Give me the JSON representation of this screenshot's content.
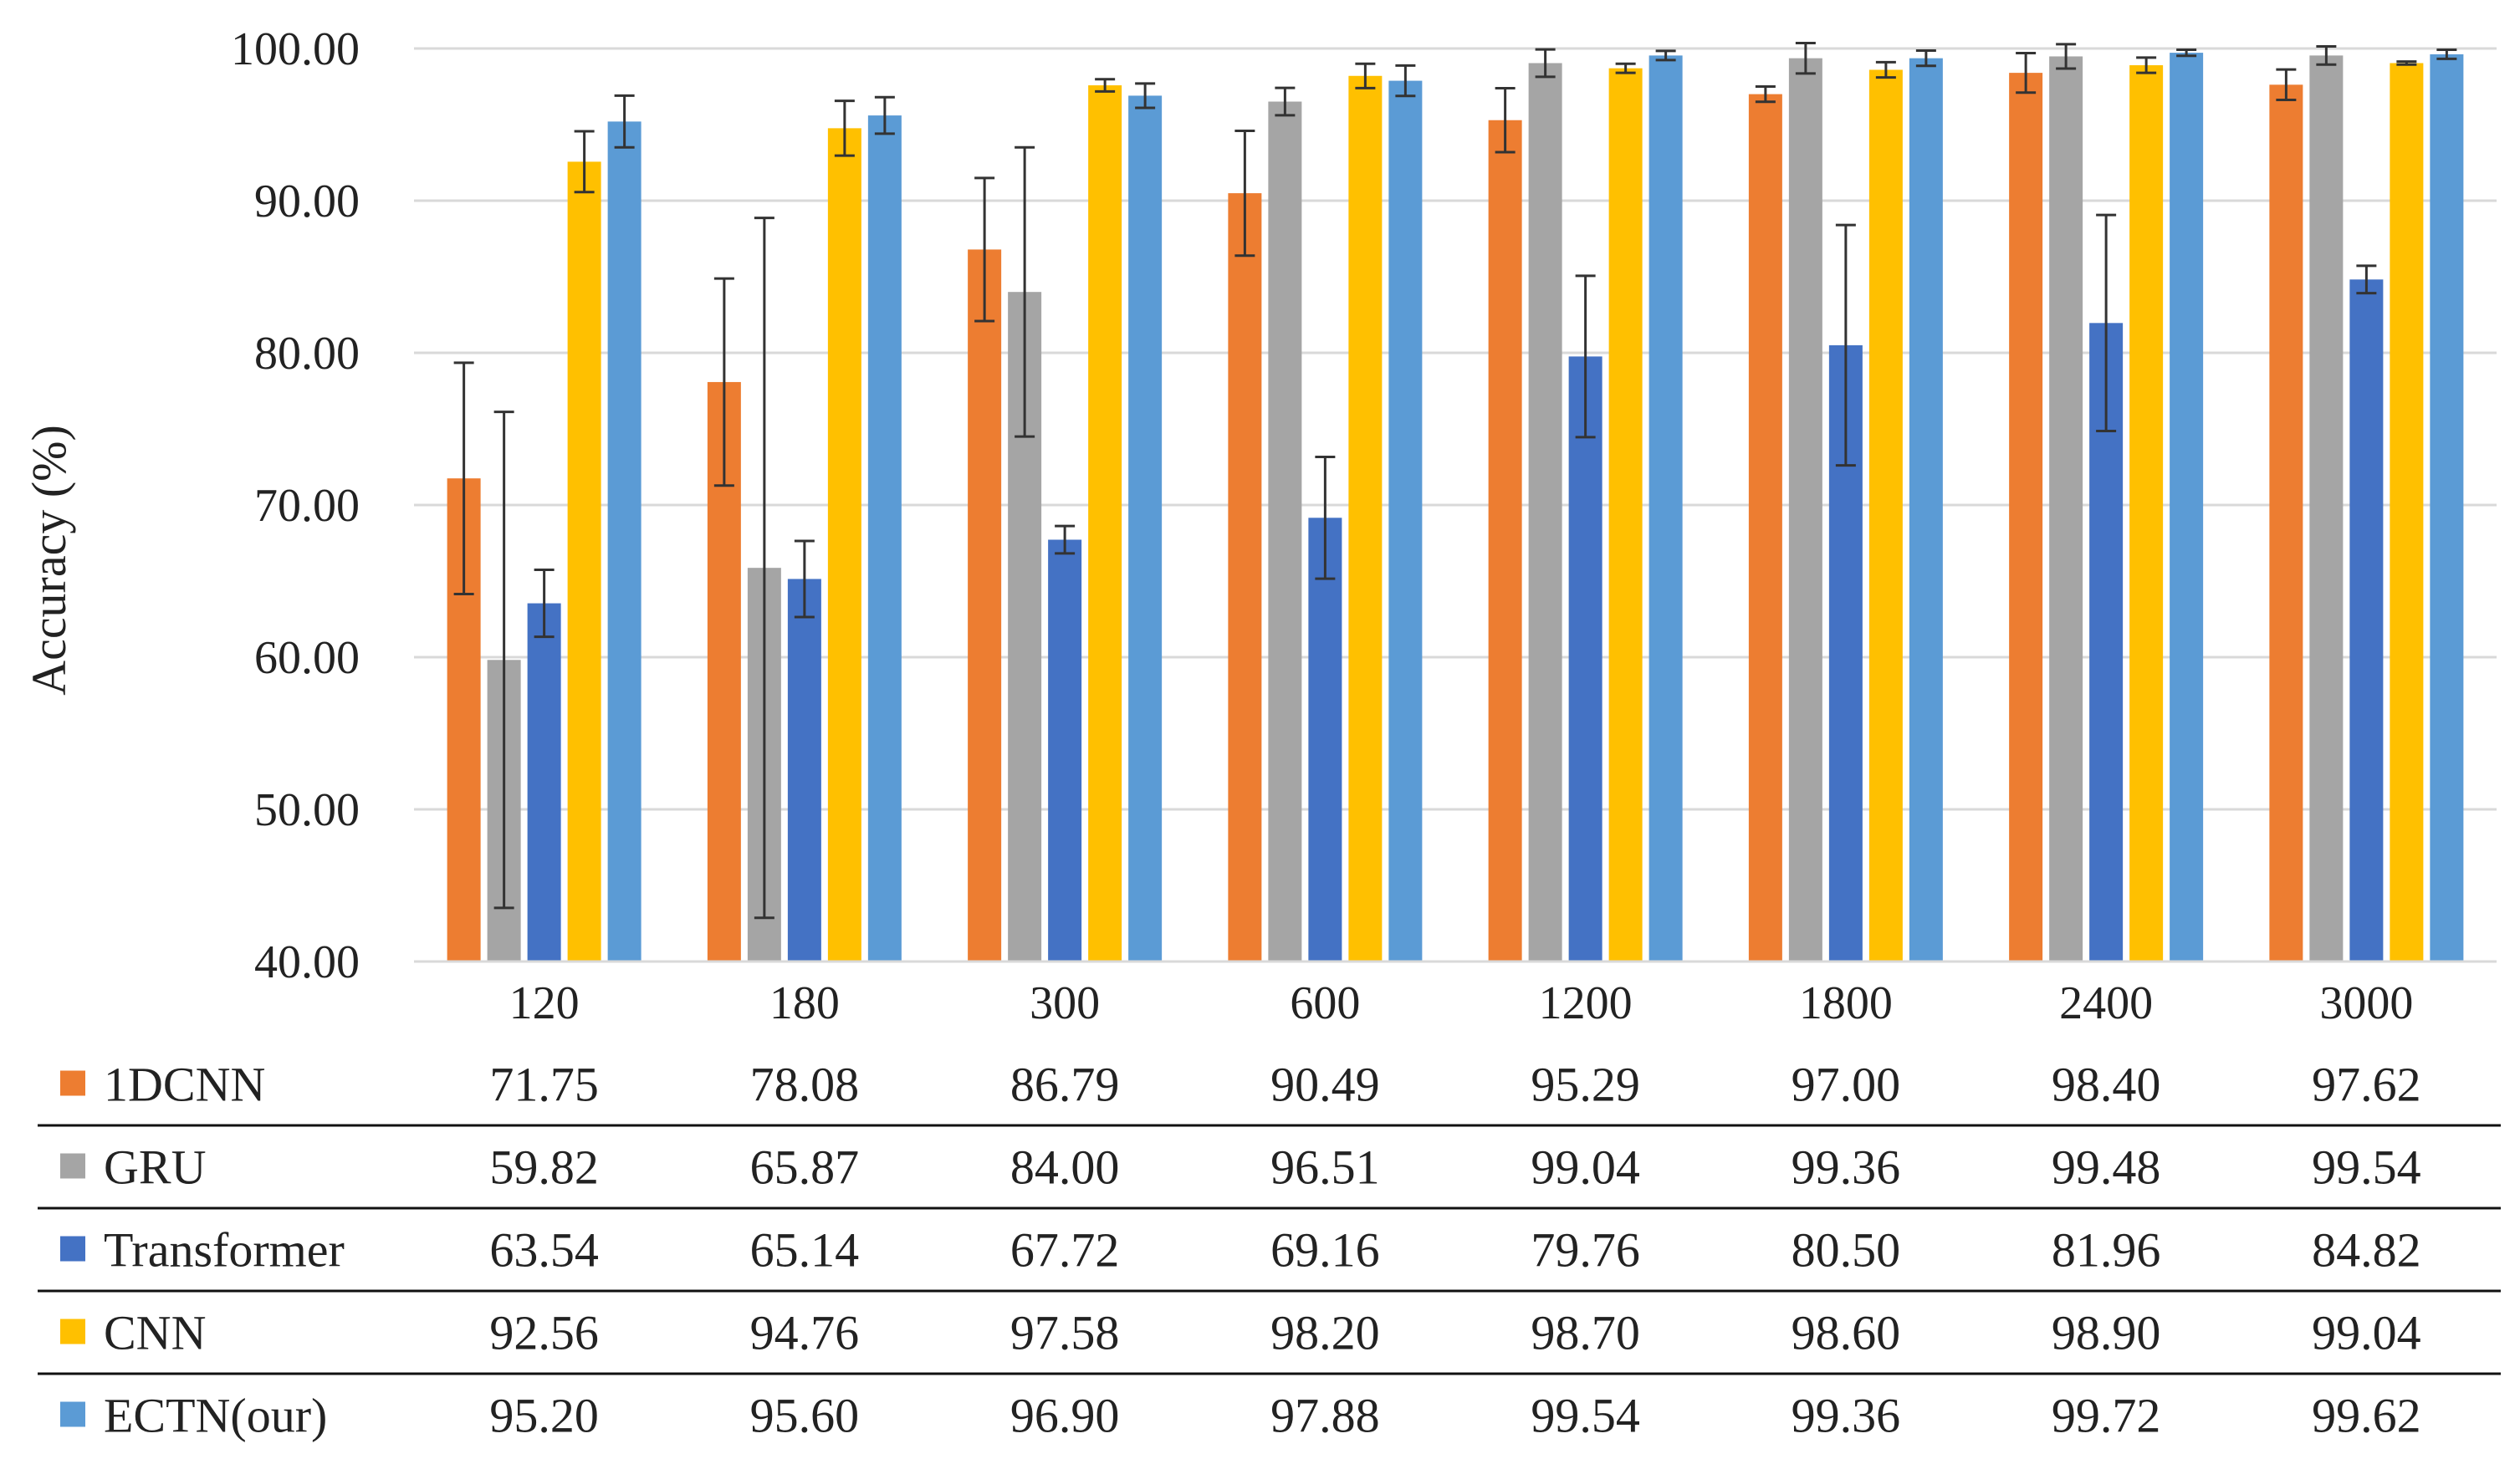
{
  "chart_data": {
    "type": "bar",
    "title": "",
    "xlabel": "",
    "ylabel": "Accuracy (%)",
    "ylim": [
      40,
      100
    ],
    "yticks": [
      "40.00",
      "50.00",
      "60.00",
      "70.00",
      "80.00",
      "90.00",
      "100.00"
    ],
    "grid": true,
    "error_bars": true,
    "categories": [
      "120",
      "180",
      "300",
      "600",
      "1200",
      "1800",
      "2400",
      "3000"
    ],
    "series": [
      {
        "name": "1DCNN",
        "color": "#ED7D31",
        "values": [
          71.75,
          78.08,
          86.79,
          90.49,
          95.29,
          97.0,
          98.4,
          97.62
        ],
        "labels": [
          "71.75",
          "78.08",
          "86.79",
          "90.49",
          "95.29",
          "97.00",
          "98.40",
          "97.62"
        ],
        "err": [
          7.6,
          6.8,
          4.7,
          4.1,
          2.1,
          0.5,
          1.3,
          1.0
        ]
      },
      {
        "name": "GRU",
        "color": "#A5A5A5",
        "values": [
          59.82,
          65.87,
          84.0,
          96.51,
          99.04,
          99.36,
          99.48,
          99.54
        ],
        "labels": [
          "59.82",
          "65.87",
          "84.00",
          "96.51",
          "99.04",
          "99.36",
          "99.48",
          "99.54"
        ],
        "err": [
          16.3,
          23.0,
          9.5,
          0.9,
          0.9,
          1.0,
          0.8,
          0.6
        ]
      },
      {
        "name": "Transformer",
        "color": "#4472C4",
        "values": [
          63.54,
          65.14,
          67.72,
          69.16,
          79.76,
          80.5,
          81.96,
          84.82
        ],
        "labels": [
          "63.54",
          "65.14",
          "67.72",
          "69.16",
          "79.76",
          "80.50",
          "81.96",
          "84.82"
        ],
        "err": [
          2.2,
          2.5,
          0.9,
          4.0,
          5.3,
          7.9,
          7.1,
          0.9
        ]
      },
      {
        "name": "CNN",
        "color": "#FFC000",
        "values": [
          92.56,
          94.76,
          97.58,
          98.2,
          98.7,
          98.6,
          98.9,
          99.04
        ],
        "labels": [
          "92.56",
          "94.76",
          "97.58",
          "98.20",
          "98.70",
          "98.60",
          "98.90",
          "99.04"
        ],
        "err": [
          2.0,
          1.8,
          0.4,
          0.8,
          0.3,
          0.5,
          0.5,
          0.1
        ]
      },
      {
        "name": "ECTN(our)",
        "color": "#5B9BD5",
        "values": [
          95.2,
          95.6,
          96.9,
          97.88,
          99.54,
          99.36,
          99.72,
          99.62
        ],
        "labels": [
          "95.20",
          "95.60",
          "96.90",
          "97.88",
          "99.54",
          "99.36",
          "99.72",
          "99.62"
        ],
        "err": [
          1.7,
          1.2,
          0.8,
          1.0,
          0.3,
          0.5,
          0.2,
          0.3
        ]
      }
    ]
  }
}
